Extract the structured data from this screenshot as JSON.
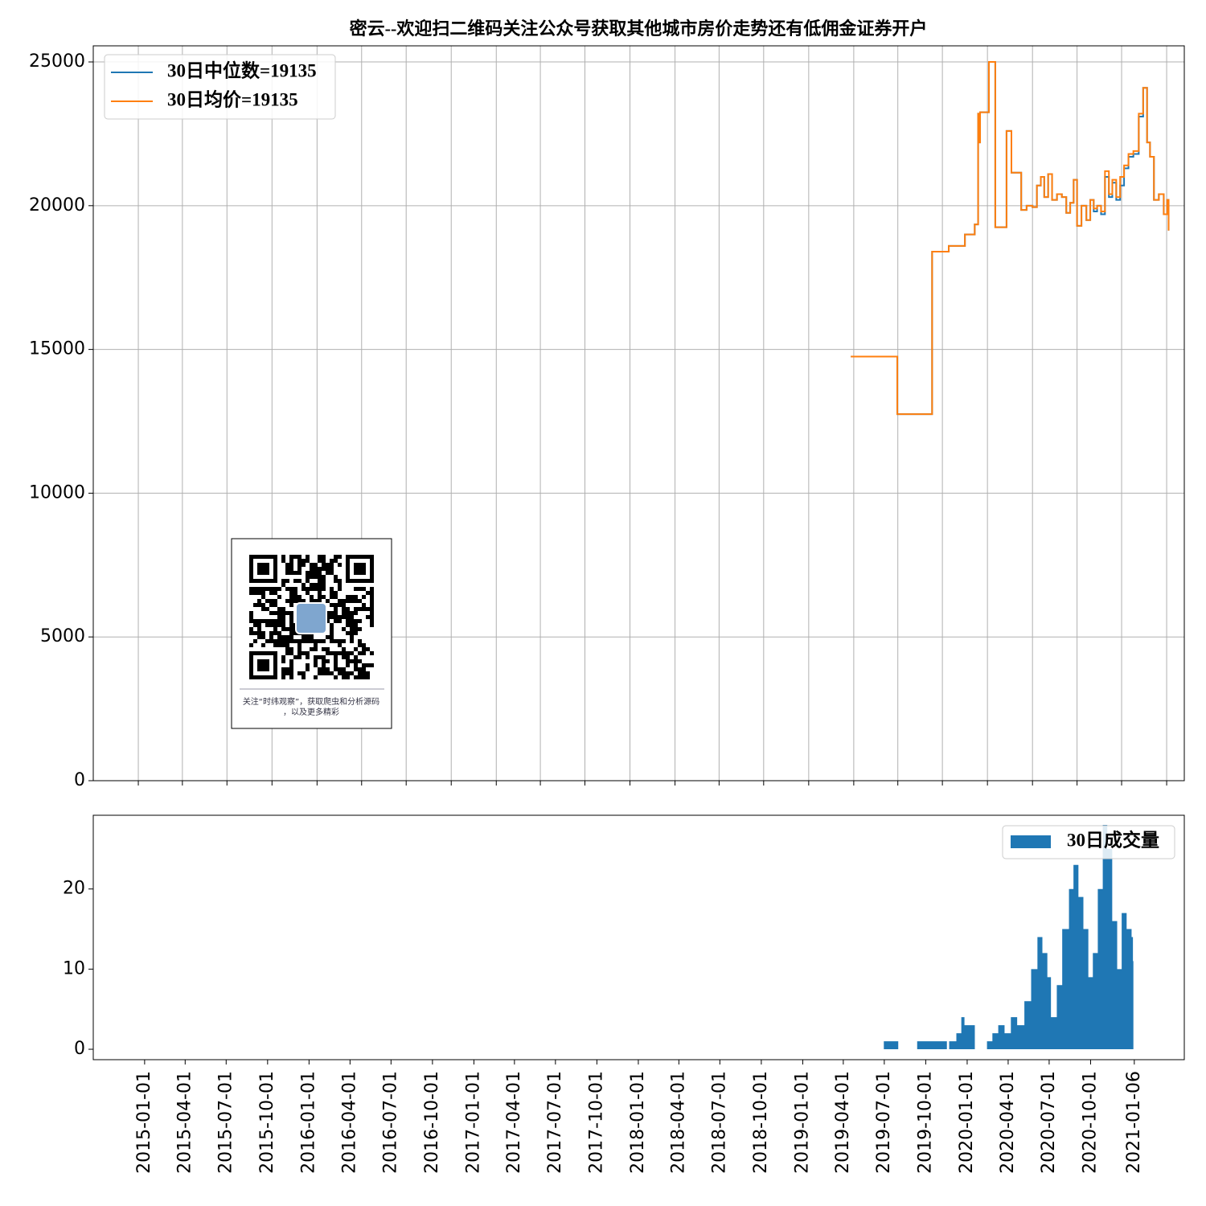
{
  "chart_data": [
    {
      "type": "line",
      "title": "密云--欢迎扫二维码关注公众号获取其他城市房价走势还有低佣金证券开户",
      "step": "post",
      "x": [
        "2018-12-26",
        "2019-03-31",
        "2019-06-10",
        "2019-07-14",
        "2019-08-16",
        "2019-09-05",
        "2019-09-12",
        "2019-09-14",
        "2019-09-16",
        "2019-10-04",
        "2019-10-17",
        "2019-11-09",
        "2019-11-19",
        "2019-12-09",
        "2019-12-20",
        "2020-01-01",
        "2020-01-10",
        "2020-01-18",
        "2020-01-25",
        "2020-02-02",
        "2020-02-10",
        "2020-02-20",
        "2020-03-01",
        "2020-03-10",
        "2020-03-18",
        "2020-03-25",
        "2020-04-01",
        "2020-04-10",
        "2020-04-20",
        "2020-04-28",
        "2020-05-05",
        "2020-05-12",
        "2020-05-20",
        "2020-05-28",
        "2020-06-05",
        "2020-06-12",
        "2020-06-20",
        "2020-06-28",
        "2020-07-06",
        "2020-07-15",
        "2020-07-25",
        "2020-08-05",
        "2020-08-14",
        "2020-08-22",
        "2020-08-28",
        "2020-09-05",
        "2020-09-15",
        "2020-09-25",
        "2020-10-02",
        "2020-10-05"
      ],
      "series": [
        {
          "name": "30日中位数=19135",
          "color": "#1f77b4",
          "values": [
            14750,
            12750,
            18400,
            18600,
            19000,
            19350,
            23200,
            22200,
            23250,
            25000,
            19250,
            22600,
            21150,
            19850,
            20000,
            19950,
            20700,
            21000,
            20300,
            21100,
            20200,
            20400,
            20300,
            19750,
            20100,
            20900,
            19300,
            20000,
            19500,
            20200,
            19800,
            20000,
            19700,
            21000,
            20300,
            20800,
            20200,
            20700,
            21300,
            21700,
            21800,
            23100,
            24100,
            22200,
            21700,
            20200,
            20400,
            19700,
            20200,
            19135
          ]
        },
        {
          "name": "30日均价=19135",
          "color": "#ff7f0e",
          "values": [
            14750,
            12750,
            18400,
            18600,
            19000,
            19350,
            23200,
            22200,
            23250,
            25000,
            19250,
            22600,
            21150,
            19850,
            20000,
            19950,
            20700,
            21000,
            20300,
            21100,
            20200,
            20400,
            20300,
            19750,
            20100,
            20900,
            19300,
            20000,
            19500,
            20200,
            19900,
            20000,
            19800,
            21200,
            20400,
            20900,
            20300,
            21000,
            21400,
            21800,
            21900,
            23200,
            24100,
            22200,
            21700,
            20200,
            20400,
            19700,
            20200,
            19135
          ]
        }
      ],
      "xlim": [
        "2014-10-01",
        "2020-11-06"
      ],
      "xticks": [
        "2015-01-01",
        "2015-04-01",
        "2015-07-01",
        "2015-10-01",
        "2016-01-01",
        "2016-04-01",
        "2016-07-01",
        "2016-10-01",
        "2017-01-01",
        "2017-04-01",
        "2017-07-01",
        "2017-10-01",
        "2018-01-01",
        "2018-04-01",
        "2018-07-01",
        "2018-10-01",
        "2019-01-01",
        "2019-04-01",
        "2019-07-01",
        "2019-10-01",
        "2020-01-01",
        "2020-04-01",
        "2020-07-01",
        "2020-10-01"
      ],
      "ylim": [
        0,
        25560
      ],
      "yticks": [
        0,
        5000,
        10000,
        15000,
        20000,
        25000
      ],
      "grid": true,
      "legend": "upper left",
      "annotation": "关注“时纬观察”，获取爬虫和分析源码，以及更多精彩"
    },
    {
      "type": "area",
      "step": "post",
      "x": [
        "2019-06-30",
        "2019-08-01",
        "2019-09-12",
        "2019-10-12",
        "2019-11-17",
        "2019-11-22",
        "2019-12-08",
        "2019-12-19",
        "2019-12-26",
        "2020-01-18",
        "2020-02-14",
        "2020-02-26",
        "2020-03-10",
        "2020-03-24",
        "2020-04-07",
        "2020-04-21",
        "2020-05-07",
        "2020-05-22",
        "2020-06-05",
        "2020-06-16",
        "2020-06-27",
        "2020-07-05",
        "2020-07-18",
        "2020-07-30",
        "2020-08-14",
        "2020-08-24",
        "2020-09-04",
        "2020-09-15",
        "2020-09-26",
        "2020-10-06",
        "2020-10-17",
        "2020-10-28",
        "2020-11-07",
        "2020-11-18",
        "2020-11-29",
        "2020-12-09",
        "2020-12-20",
        "2020-12-31",
        "2021-01-03",
        "2021-01-04"
      ],
      "series": [
        {
          "name": "30日成交量",
          "color": "#1f77b4",
          "values": [
            1,
            0,
            1,
            1,
            0,
            1,
            2,
            4,
            3,
            0,
            1,
            2,
            3,
            2,
            4,
            3,
            6,
            10,
            14,
            12,
            9,
            4,
            8,
            15,
            20,
            23,
            19,
            15,
            9,
            12,
            20,
            28,
            25,
            16,
            10,
            17,
            15,
            14,
            11,
            0
          ]
        }
      ],
      "xlim": [
        "2014-09-09",
        "2021-04-27"
      ],
      "xticks": [
        "2015-01-01",
        "2015-04-01",
        "2015-07-01",
        "2015-10-01",
        "2016-01-01",
        "2016-04-01",
        "2016-07-01",
        "2016-10-01",
        "2017-01-01",
        "2017-04-01",
        "2017-07-01",
        "2017-10-01",
        "2018-01-01",
        "2018-04-01",
        "2018-07-01",
        "2018-10-01",
        "2019-01-01",
        "2019-04-01",
        "2019-07-01",
        "2019-10-01",
        "2020-01-01",
        "2020-04-01",
        "2020-07-01",
        "2020-10-01",
        "2021-01-06"
      ],
      "ylim": [
        -1.3,
        29.2
      ],
      "yticks": [
        0,
        10,
        20
      ],
      "grid": false,
      "legend": "upper right"
    }
  ]
}
